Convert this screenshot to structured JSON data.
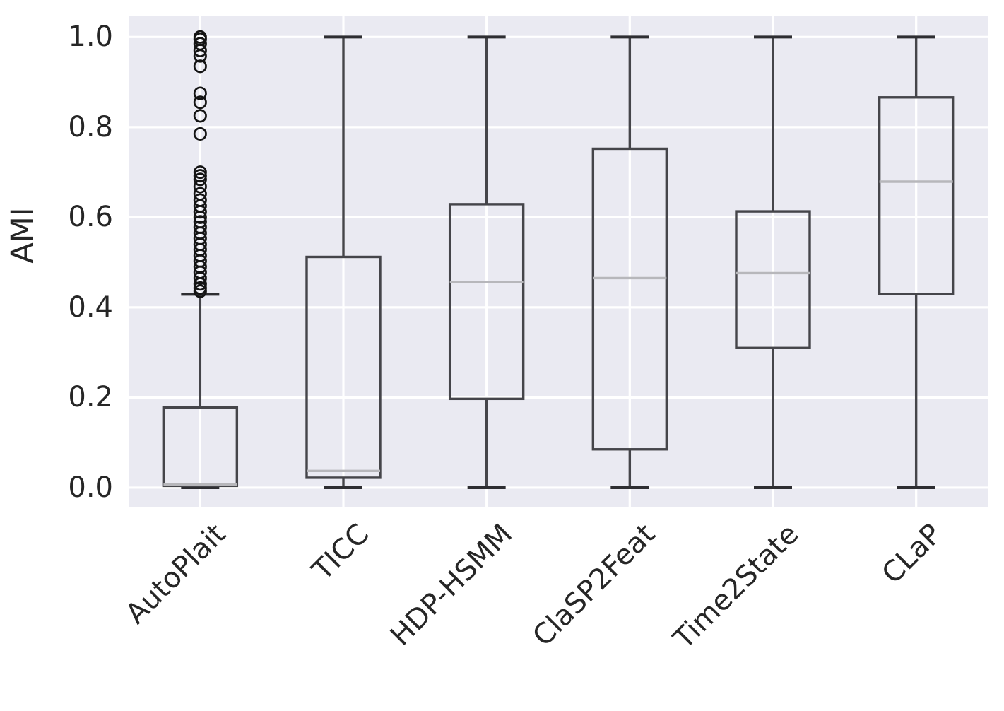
{
  "figure": {
    "background": "#ffffff",
    "plot_background": "#eaeaf2",
    "grid_color": "#ffffff",
    "text_color": "#262626",
    "box_edge_color": "#45454a",
    "cap_color": "#2e2e32",
    "median_color": "#b7b7bb",
    "flier_color": "#141414"
  },
  "chart_data": {
    "type": "boxplot",
    "title": "",
    "xlabel": "",
    "ylabel": "AMI",
    "grid": true,
    "categories": [
      "AutoPlait",
      "TICC",
      "HDP-HSMM",
      "ClaSP2Feat",
      "Time2State",
      "CLaP"
    ],
    "yticks": [
      0.0,
      0.2,
      0.4,
      0.6,
      0.8,
      1.0
    ],
    "ytick_labels": [
      "0.0",
      "0.2",
      "0.4",
      "0.6",
      "0.8",
      "1.0"
    ],
    "ylim": [
      -0.044,
      1.046
    ],
    "series": [
      {
        "name": "AutoPlait",
        "whisker_low": 0.0,
        "q1": 0.004,
        "median": 0.007,
        "q3": 0.178,
        "whisker_high": 0.429,
        "outliers": [
          1.0,
          0.995,
          0.985,
          0.97,
          0.958,
          0.935,
          0.875,
          0.855,
          0.825,
          0.785,
          0.7,
          0.692,
          0.684,
          0.668,
          0.652,
          0.638,
          0.625,
          0.612,
          0.6,
          0.59,
          0.578,
          0.565,
          0.553,
          0.54,
          0.528,
          0.515,
          0.503,
          0.49,
          0.478,
          0.465,
          0.452,
          0.443,
          0.436
        ]
      },
      {
        "name": "TICC",
        "whisker_low": 0.0,
        "q1": 0.022,
        "median": 0.037,
        "q3": 0.512,
        "whisker_high": 1.0,
        "outliers": []
      },
      {
        "name": "HDP-HSMM",
        "whisker_low": 0.0,
        "q1": 0.197,
        "median": 0.456,
        "q3": 0.629,
        "whisker_high": 1.0,
        "outliers": []
      },
      {
        "name": "ClaSP2Feat",
        "whisker_low": 0.0,
        "q1": 0.085,
        "median": 0.465,
        "q3": 0.752,
        "whisker_high": 1.0,
        "outliers": []
      },
      {
        "name": "Time2State",
        "whisker_low": 0.0,
        "q1": 0.31,
        "median": 0.476,
        "q3": 0.613,
        "whisker_high": 1.0,
        "outliers": []
      },
      {
        "name": "CLaP",
        "whisker_low": 0.0,
        "q1": 0.43,
        "median": 0.679,
        "q3": 0.866,
        "whisker_high": 1.0,
        "outliers": []
      }
    ]
  }
}
